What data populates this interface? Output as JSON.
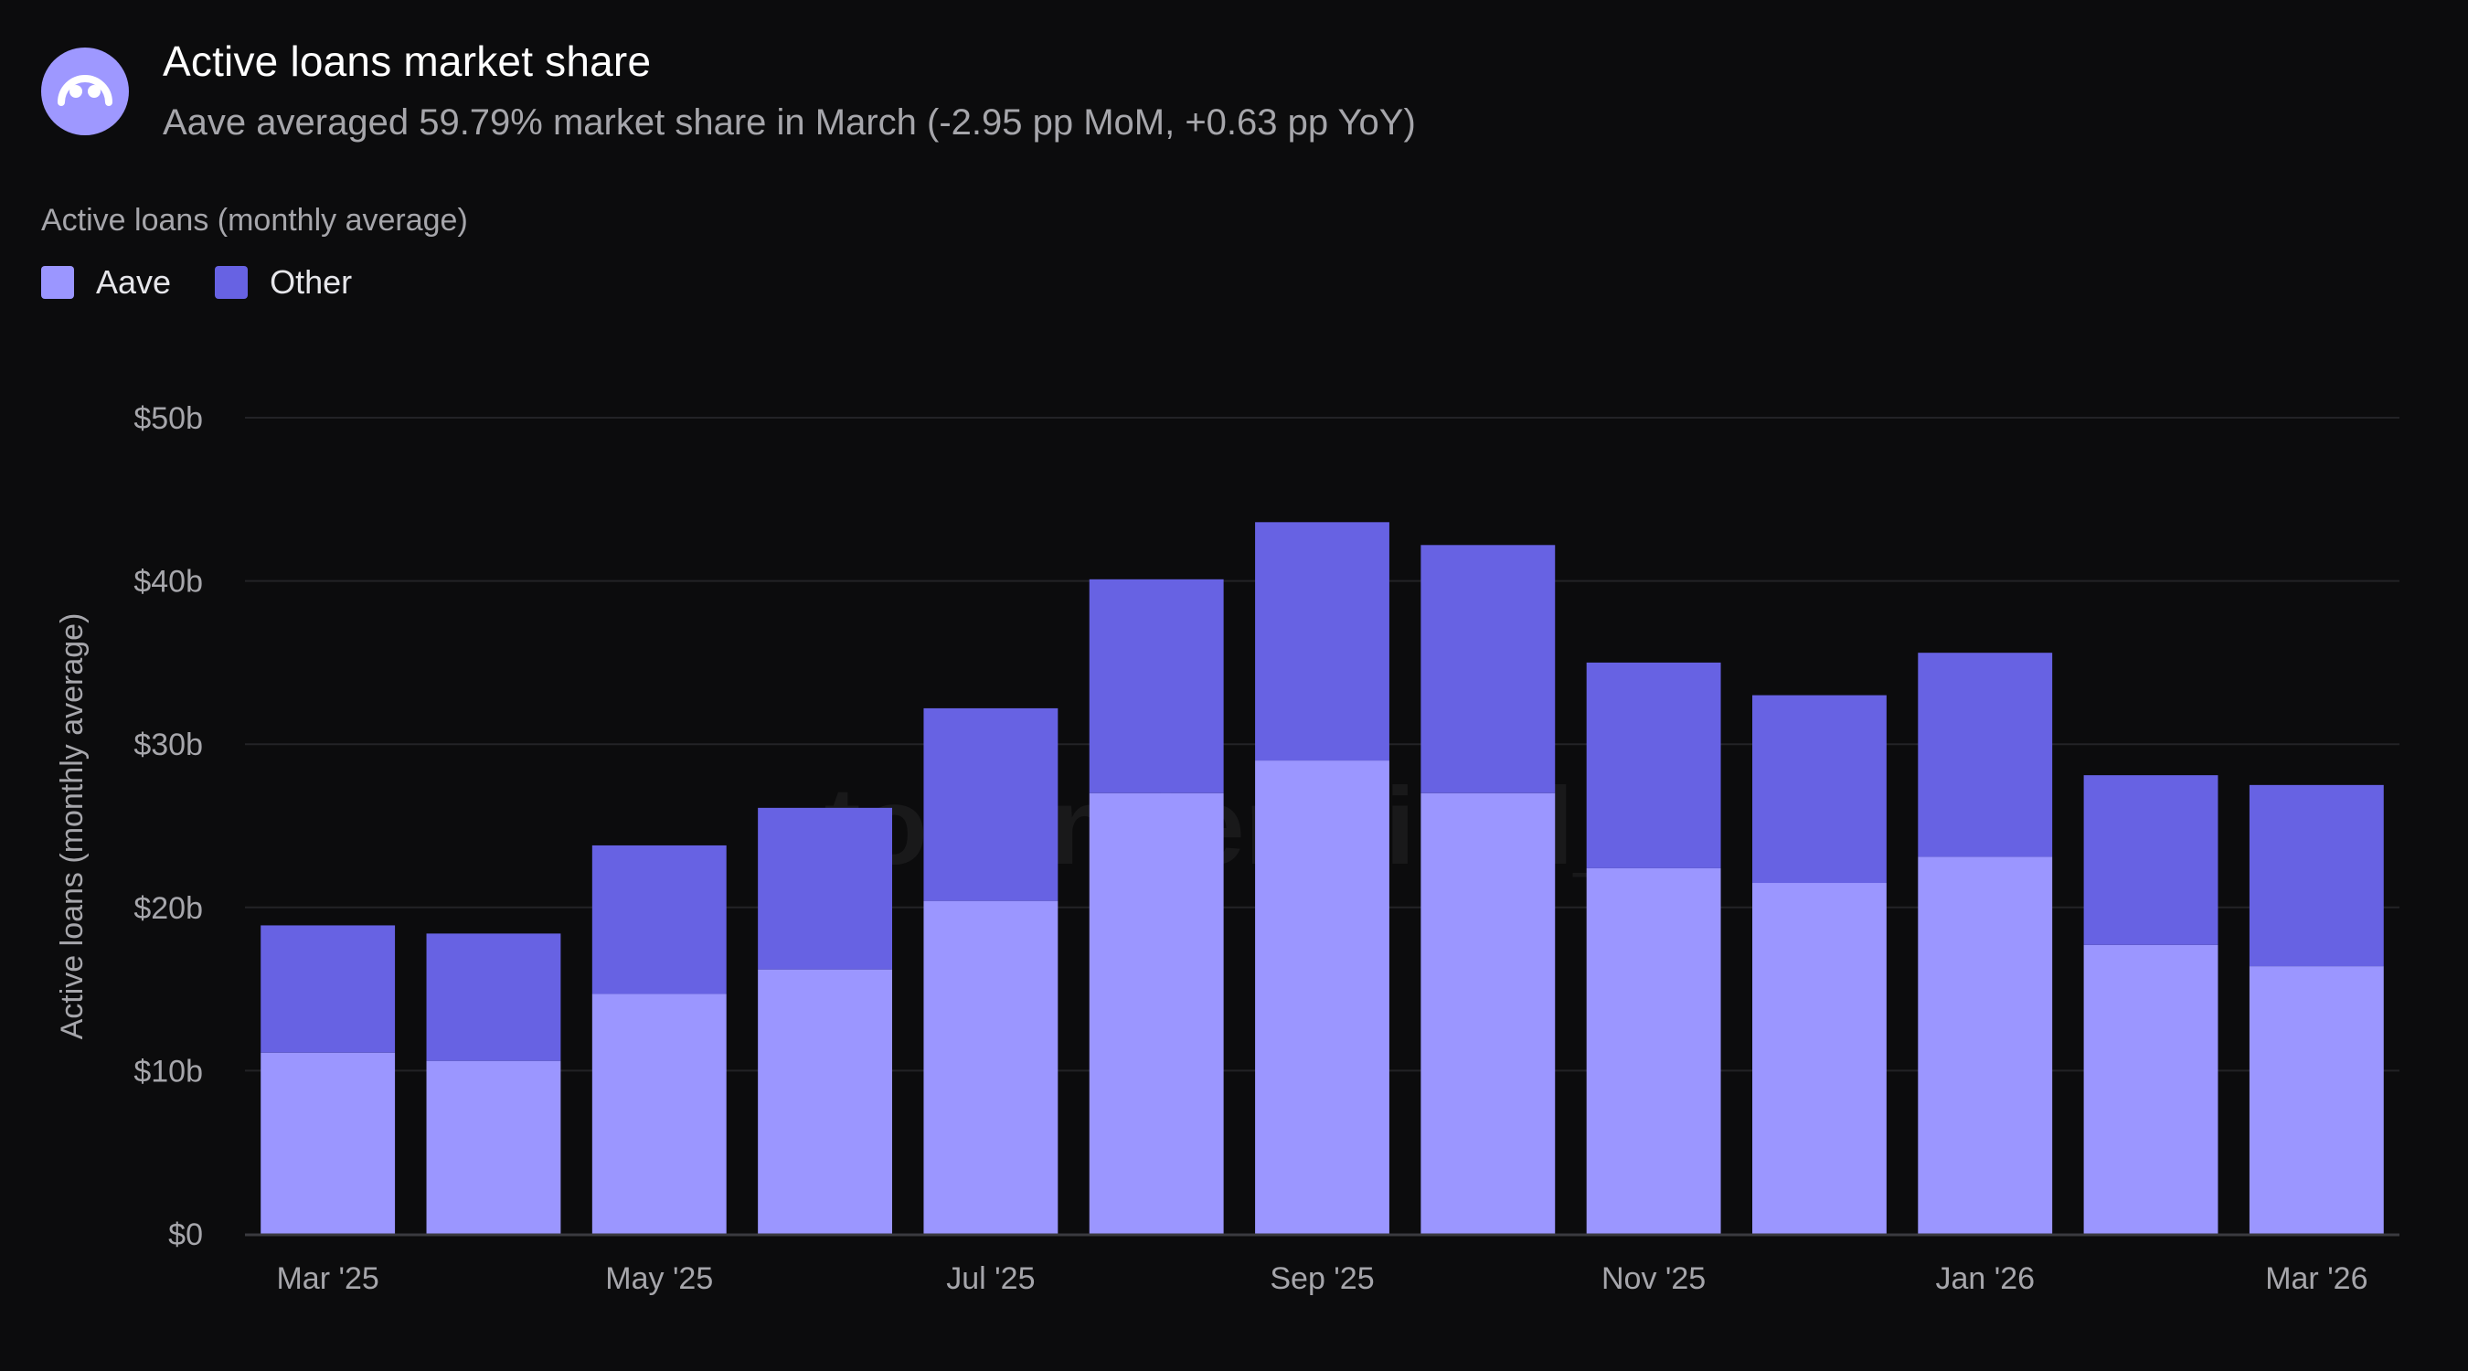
{
  "header": {
    "title": "Active loans market share",
    "subtitle": "Aave averaged 59.79% market share in March (-2.95 pp MoM, +0.63 pp YoY)",
    "logo_icon": "token-terminal-logo-icon"
  },
  "legend": {
    "title": "Active loans (monthly average)",
    "items": [
      {
        "label": "Aave",
        "color": "#9b96ff"
      },
      {
        "label": "Other",
        "color": "#6762e3"
      }
    ]
  },
  "watermark": "token terminal_",
  "chart_data": {
    "type": "bar",
    "stacked": true,
    "categories": [
      "Mar '25",
      "Apr '25",
      "May '25",
      "Jun '25",
      "Jul '25",
      "Aug '25",
      "Sep '25",
      "Oct '25",
      "Nov '25",
      "Dec '25",
      "Jan '26",
      "Feb '26",
      "Mar '26"
    ],
    "x_tick_labels": [
      "Mar '25",
      "May '25",
      "Jul '25",
      "Sep '25",
      "Nov '25",
      "Jan '26",
      "Mar '26"
    ],
    "series": [
      {
        "name": "Aave",
        "color": "#9b96ff",
        "values": [
          11.1,
          10.6,
          14.7,
          16.2,
          20.4,
          27.0,
          29.0,
          27.0,
          22.4,
          21.5,
          23.1,
          17.7,
          16.4
        ]
      },
      {
        "name": "Other",
        "color": "#6762e3",
        "values": [
          7.8,
          7.8,
          9.1,
          9.9,
          11.8,
          13.1,
          14.6,
          15.2,
          12.6,
          11.5,
          12.5,
          10.4,
          11.1
        ]
      }
    ],
    "ylabel": "Active loans (monthly average)",
    "ylim": [
      0,
      50
    ],
    "y_ticks": [
      0,
      10,
      20,
      30,
      40,
      50
    ],
    "y_tick_labels": [
      "$0",
      "$10b",
      "$20b",
      "$30b",
      "$40b",
      "$50b"
    ],
    "grid": true,
    "legend_position": "top-left"
  }
}
